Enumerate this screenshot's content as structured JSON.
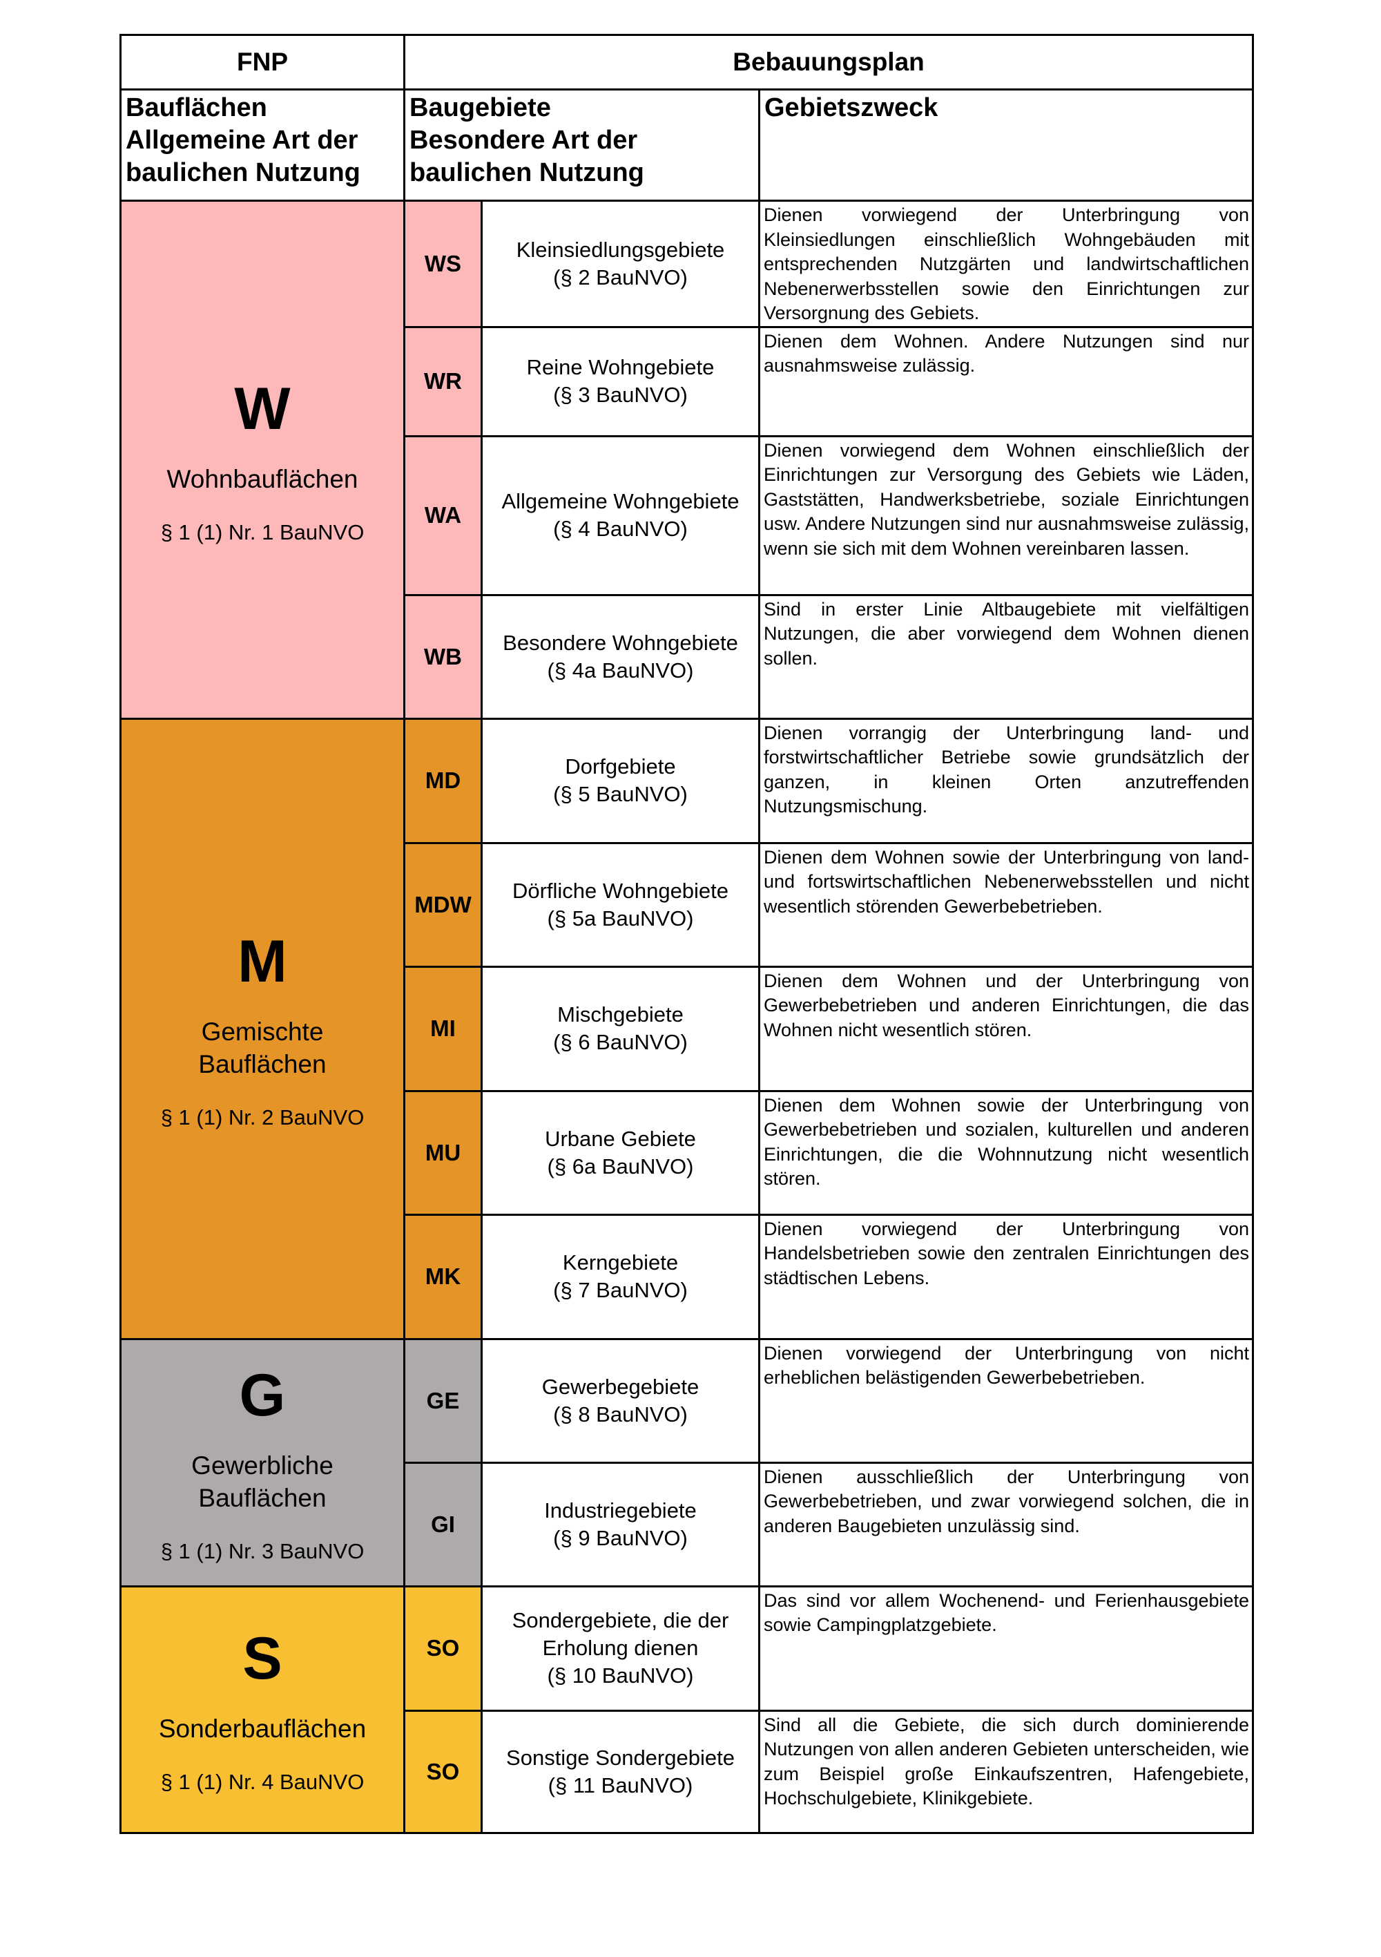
{
  "header": {
    "fnp": "FNP",
    "bebauungsplan": "Bebauungsplan"
  },
  "subheader": {
    "bauflaechen": [
      "Bauflächen",
      "Allgemeine Art der",
      "baulichen Nutzung"
    ],
    "baugebiete": [
      "Baugebiete",
      "Besondere Art der",
      "baulichen Nutzung"
    ],
    "gebietszweck": "Gebietszweck"
  },
  "colors": {
    "W": "#FDB9B9",
    "M": "#E59428",
    "G": "#AEAAAA",
    "S": "#F9BF33"
  },
  "groups": [
    {
      "letter": "W",
      "name": "Wohnbauflächen",
      "paragraph": "§ 1 (1) Nr. 1 BauNVO"
    },
    {
      "letter": "M",
      "name": "Gemischte Bauflächen",
      "paragraph": "§ 1 (1) Nr. 2 BauNVO"
    },
    {
      "letter": "G",
      "name": "Gewerbliche Bauflächen",
      "paragraph": "§ 1 (1) Nr. 3 BauNVO"
    },
    {
      "letter": "S",
      "name": "Sonderbauflächen",
      "paragraph": "§ 1 (1) Nr. 4 BauNVO"
    }
  ],
  "rows": [
    {
      "code": "WS",
      "name": "Kleinsiedlungsgebiete",
      "par": "(§ 2 BauNVO)",
      "desc": "Dienen vorwiegend der Unterbringung von Kleinsiedlungen einschließlich Wohngebäuden mit entsprechenden Nutzgärten und landwirtschaftlichen Nebenerwerbsstellen sowie den Einrichtungen zur Versorgnung des Gebiets."
    },
    {
      "code": "WR",
      "name": "Reine Wohngebiete",
      "par": "(§ 3 BauNVO)",
      "desc": "Dienen dem Wohnen. Andere Nutzungen sind nur ausnahmsweise zulässig."
    },
    {
      "code": "WA",
      "name": "Allgemeine Wohngebiete",
      "par": "(§ 4 BauNVO)",
      "desc": "Dienen vorwiegend dem Wohnen einschließlich der Einrichtungen zur Versorgung des Gebiets wie Läden, Gaststätten, Handwerksbetriebe, soziale Einrichtungen usw. Andere Nutzungen sind nur ausnahmsweise zulässig, wenn sie sich mit dem Wohnen vereinbaren lassen."
    },
    {
      "code": "WB",
      "name": "Besondere Wohngebiete",
      "par": "(§ 4a BauNVO)",
      "desc": "Sind in erster Linie Altbaugebiete mit vielfältigen Nutzungen, die aber vorwiegend dem Wohnen dienen sollen."
    },
    {
      "code": "MD",
      "name": "Dorfgebiete",
      "par": "(§ 5 BauNVO)",
      "desc": "Dienen vorrangig der Unterbringung land- und forstwirtschaftlicher Betriebe sowie grundsätzlich der ganzen, in kleinen Orten anzutreffenden Nutzungsmischung."
    },
    {
      "code": "MDW",
      "name": "Dörfliche Wohngebiete",
      "par": "(§ 5a BauNVO)",
      "desc": "Dienen dem Wohnen sowie der Unterbringung von land- und fortswirtschaftlichen Nebenerwebsstellen und nicht wesentlich störenden Gewerbebetrieben."
    },
    {
      "code": "MI",
      "name": "Mischgebiete",
      "par": "(§ 6 BauNVO)",
      "desc": "Dienen dem Wohnen und der Unterbringung von Gewerbebetrieben und anderen Einrichtungen, die das Wohnen nicht wesentlich stören."
    },
    {
      "code": "MU",
      "name": "Urbane Gebiete",
      "par": "(§ 6a BauNVO)",
      "desc": "Dienen dem Wohnen sowie der Unterbringung von Gewerbebetrieben und sozialen, kulturellen und anderen Einrichtungen, die die Wohnnutzung nicht wesentlich stören."
    },
    {
      "code": "MK",
      "name": "Kerngebiete",
      "par": "(§ 7 BauNVO)",
      "desc": "Dienen vorwiegend der Unterbringung von Handelsbetrieben sowie den zentralen Einrichtungen des städtischen Lebens."
    },
    {
      "code": "GE",
      "name": "Gewerbegebiete",
      "par": "(§ 8 BauNVO)",
      "desc": "Dienen vorwiegend der Unterbringung von nicht erheblichen belästigenden Gewerbebetrieben."
    },
    {
      "code": "GI",
      "name": "Industriegebiete",
      "par": "(§ 9 BauNVO)",
      "desc": "Dienen ausschließlich der Unterbringung von Gewerbebetrieben, und zwar vorwiegend solchen, die in anderen Baugebieten unzulässig sind."
    },
    {
      "code": "SO",
      "name": "Sondergebiete, die der Erholung dienen",
      "par": "(§ 10 BauNVO)",
      "desc": "Das sind vor allem Wochenend- und Ferienhausgebiete sowie Campingplatzgebiete."
    },
    {
      "code": "SO",
      "name": "Sonstige Sondergebiete",
      "par": "(§ 11 BauNVO)",
      "desc": "Sind all die Gebiete, die sich durch dominierende Nutzungen von allen anderen Gebieten unterscheiden, wie zum Beispiel große Einkaufszentren, Hafengebiete, Hochschulgebiete, Klinikgebiete."
    }
  ]
}
